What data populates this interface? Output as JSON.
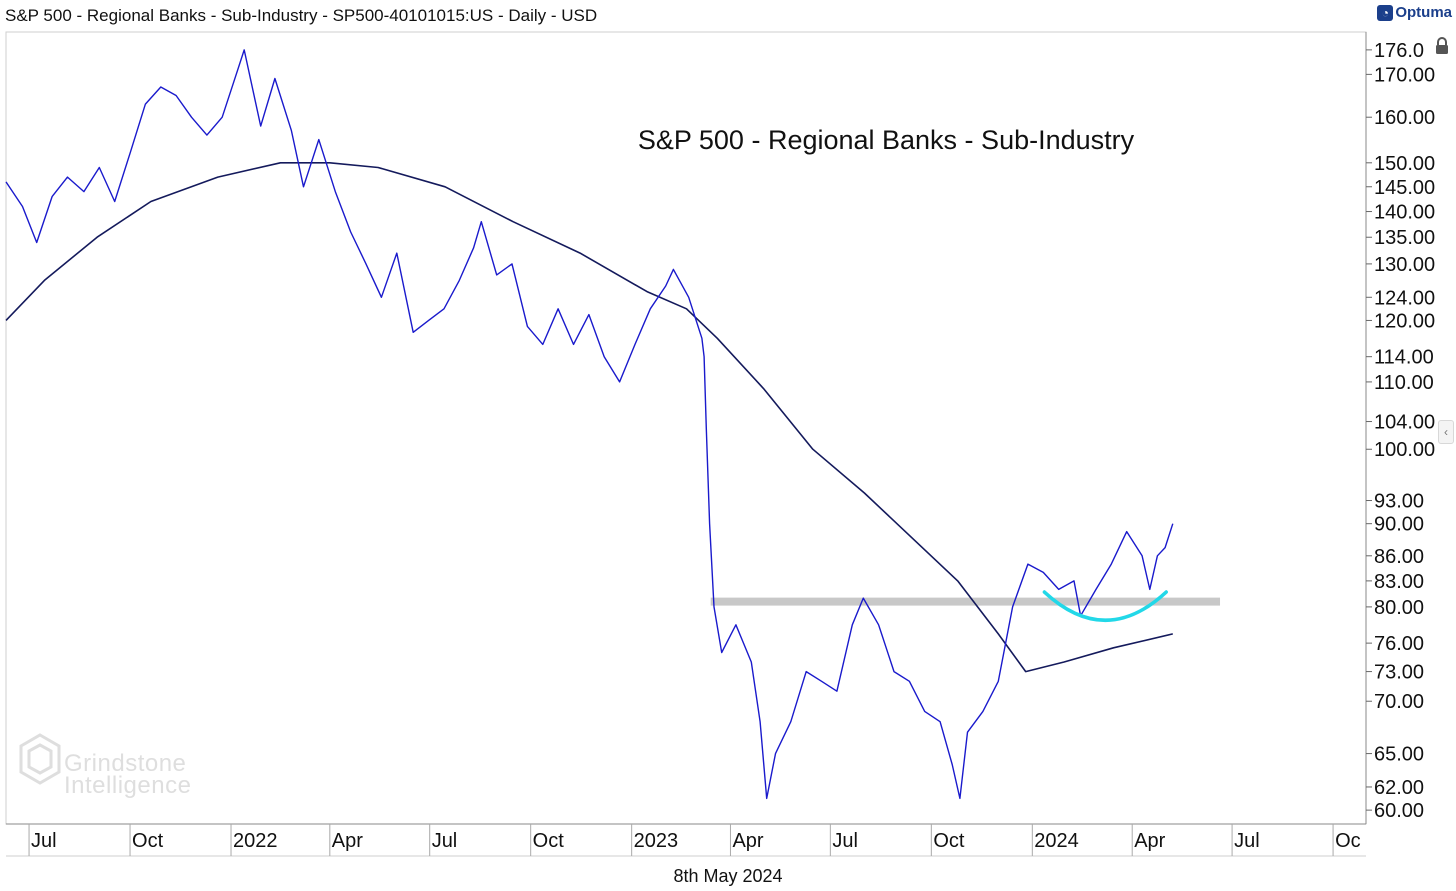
{
  "header": {
    "title": "S&P 500 - Regional Banks - Sub-Industry - SP500-40101015:US - Daily - USD",
    "brand": "Optuma",
    "brand_icon": "optuma-logo-icon"
  },
  "footer": {
    "date": "8th May 2024"
  },
  "watermark": {
    "line1": "Grindstone",
    "line2": "Intelligence"
  },
  "icons": {
    "lock": "lock-icon",
    "collapse": "chevron-left-icon"
  },
  "chart_data": {
    "type": "line",
    "title": "S&P 500 - Regional Banks - Sub-Industry",
    "xlabel": "",
    "ylabel": "",
    "y_scale": "log",
    "ylim": [
      59,
      180
    ],
    "xlim": [
      "2021-06-10",
      "2024-10-31"
    ],
    "grid": false,
    "legend": "none",
    "x_tick_labels": [
      {
        "date": "2021-07-01",
        "label": "Jul"
      },
      {
        "date": "2021-10-01",
        "label": "Oct"
      },
      {
        "date": "2022-01-01",
        "label": "2022"
      },
      {
        "date": "2022-04-01",
        "label": "Apr"
      },
      {
        "date": "2022-07-01",
        "label": "Jul"
      },
      {
        "date": "2022-10-01",
        "label": "Oct"
      },
      {
        "date": "2023-01-01",
        "label": "2023"
      },
      {
        "date": "2023-04-01",
        "label": "Apr"
      },
      {
        "date": "2023-07-01",
        "label": "Jul"
      },
      {
        "date": "2023-10-01",
        "label": "Oct"
      },
      {
        "date": "2024-01-01",
        "label": "2024"
      },
      {
        "date": "2024-04-01",
        "label": "Apr"
      },
      {
        "date": "2024-07-01",
        "label": "Jul"
      },
      {
        "date": "2024-10-01",
        "label": "Oc"
      }
    ],
    "y_tick_labels": [
      {
        "value": 176,
        "label": "176.0"
      },
      {
        "value": 170,
        "label": "170.00"
      },
      {
        "value": 160,
        "label": "160.00"
      },
      {
        "value": 150,
        "label": "150.00"
      },
      {
        "value": 145,
        "label": "145.00"
      },
      {
        "value": 140,
        "label": "140.00"
      },
      {
        "value": 135,
        "label": "135.00"
      },
      {
        "value": 130,
        "label": "130.00"
      },
      {
        "value": 124,
        "label": "124.00"
      },
      {
        "value": 120,
        "label": "120.00"
      },
      {
        "value": 114,
        "label": "114.00"
      },
      {
        "value": 110,
        "label": "110.00"
      },
      {
        "value": 104,
        "label": "104.00"
      },
      {
        "value": 100,
        "label": "100.00"
      },
      {
        "value": 93,
        "label": "93.00"
      },
      {
        "value": 90,
        "label": "90.00"
      },
      {
        "value": 86,
        "label": "86.00"
      },
      {
        "value": 83,
        "label": "83.00"
      },
      {
        "value": 80,
        "label": "80.00"
      },
      {
        "value": 76,
        "label": "76.00"
      },
      {
        "value": 73,
        "label": "73.00"
      },
      {
        "value": 70,
        "label": "70.00"
      },
      {
        "value": 65,
        "label": "65.00"
      },
      {
        "value": 62,
        "label": "62.00"
      },
      {
        "value": 60,
        "label": "60.00"
      }
    ],
    "series": [
      {
        "color": "#1a1acc",
        "points": [
          [
            "2021-06-10",
            146
          ],
          [
            "2021-06-25",
            141
          ],
          [
            "2021-07-08",
            134
          ],
          [
            "2021-07-22",
            143
          ],
          [
            "2021-08-05",
            147
          ],
          [
            "2021-08-20",
            144
          ],
          [
            "2021-09-03",
            149
          ],
          [
            "2021-09-17",
            142
          ],
          [
            "2021-10-01",
            152
          ],
          [
            "2021-10-15",
            163
          ],
          [
            "2021-10-29",
            167
          ],
          [
            "2021-11-12",
            165
          ],
          [
            "2021-11-26",
            160
          ],
          [
            "2021-12-10",
            156
          ],
          [
            "2021-12-24",
            160
          ],
          [
            "2022-01-07",
            171
          ],
          [
            "2022-01-13",
            176
          ],
          [
            "2022-01-28",
            158
          ],
          [
            "2022-02-10",
            169
          ],
          [
            "2022-02-25",
            157
          ],
          [
            "2022-03-08",
            145
          ],
          [
            "2022-03-22",
            155
          ],
          [
            "2022-04-06",
            144
          ],
          [
            "2022-04-20",
            136
          ],
          [
            "2022-05-04",
            130
          ],
          [
            "2022-05-18",
            124
          ],
          [
            "2022-06-01",
            132
          ],
          [
            "2022-06-16",
            118
          ],
          [
            "2022-06-30",
            120
          ],
          [
            "2022-07-14",
            122
          ],
          [
            "2022-07-28",
            127
          ],
          [
            "2022-08-10",
            133
          ],
          [
            "2022-08-17",
            138
          ],
          [
            "2022-08-31",
            128
          ],
          [
            "2022-09-14",
            130
          ],
          [
            "2022-09-28",
            119
          ],
          [
            "2022-10-12",
            116
          ],
          [
            "2022-10-26",
            122
          ],
          [
            "2022-11-09",
            116
          ],
          [
            "2022-11-23",
            121
          ],
          [
            "2022-12-07",
            114
          ],
          [
            "2022-12-21",
            110
          ],
          [
            "2023-01-04",
            116
          ],
          [
            "2023-01-18",
            122
          ],
          [
            "2023-02-01",
            126
          ],
          [
            "2023-02-08",
            129
          ],
          [
            "2023-02-22",
            124
          ],
          [
            "2023-03-06",
            117
          ],
          [
            "2023-03-08",
            114
          ],
          [
            "2023-03-10",
            103
          ],
          [
            "2023-03-13",
            90
          ],
          [
            "2023-03-17",
            80
          ],
          [
            "2023-03-24",
            75
          ],
          [
            "2023-04-06",
            78
          ],
          [
            "2023-04-20",
            74
          ],
          [
            "2023-04-28",
            68
          ],
          [
            "2023-05-04",
            61
          ],
          [
            "2023-05-12",
            65
          ],
          [
            "2023-05-26",
            68
          ],
          [
            "2023-06-09",
            73
          ],
          [
            "2023-06-23",
            72
          ],
          [
            "2023-07-07",
            71
          ],
          [
            "2023-07-21",
            78
          ],
          [
            "2023-07-31",
            81
          ],
          [
            "2023-08-14",
            78
          ],
          [
            "2023-08-28",
            73
          ],
          [
            "2023-09-11",
            72
          ],
          [
            "2023-09-25",
            69
          ],
          [
            "2023-10-09",
            68
          ],
          [
            "2023-10-20",
            64
          ],
          [
            "2023-10-27",
            61
          ],
          [
            "2023-11-03",
            67
          ],
          [
            "2023-11-17",
            69
          ],
          [
            "2023-12-01",
            72
          ],
          [
            "2023-12-14",
            80
          ],
          [
            "2023-12-28",
            85
          ],
          [
            "2024-01-11",
            84
          ],
          [
            "2024-01-25",
            82
          ],
          [
            "2024-02-08",
            83
          ],
          [
            "2024-02-14",
            79
          ],
          [
            "2024-02-28",
            82
          ],
          [
            "2024-03-13",
            85
          ],
          [
            "2024-03-27",
            89
          ],
          [
            "2024-04-10",
            86
          ],
          [
            "2024-04-17",
            82
          ],
          [
            "2024-04-24",
            86
          ],
          [
            "2024-05-01",
            87
          ],
          [
            "2024-05-08",
            90
          ]
        ]
      },
      {
        "color": "#141a5c",
        "points": [
          [
            "2021-06-10",
            120
          ],
          [
            "2021-07-15",
            127
          ],
          [
            "2021-09-01",
            135
          ],
          [
            "2021-10-20",
            142
          ],
          [
            "2021-12-20",
            147
          ],
          [
            "2022-02-15",
            150
          ],
          [
            "2022-04-01",
            150
          ],
          [
            "2022-05-15",
            149
          ],
          [
            "2022-07-15",
            145
          ],
          [
            "2022-09-15",
            138
          ],
          [
            "2022-11-15",
            132
          ],
          [
            "2023-01-15",
            125
          ],
          [
            "2023-02-20",
            122
          ],
          [
            "2023-03-20",
            117
          ],
          [
            "2023-05-01",
            109
          ],
          [
            "2023-06-15",
            100
          ],
          [
            "2023-08-01",
            94
          ],
          [
            "2023-09-15",
            88
          ],
          [
            "2023-10-25",
            83
          ],
          [
            "2023-12-01",
            77
          ],
          [
            "2023-12-26",
            73
          ],
          [
            "2024-01-30",
            74
          ],
          [
            "2024-03-15",
            75.5
          ],
          [
            "2024-05-08",
            77
          ]
        ]
      }
    ],
    "annotations": [
      {
        "type": "support-band",
        "value": 80.6,
        "from": "2023-03-14",
        "to": "2024-06-20",
        "color": "#c8c8c8"
      },
      {
        "type": "arc",
        "from": "2024-01-12",
        "to": "2024-05-02",
        "top": 81.7,
        "bottom": 78.5,
        "color": "#22d8e8"
      }
    ]
  }
}
